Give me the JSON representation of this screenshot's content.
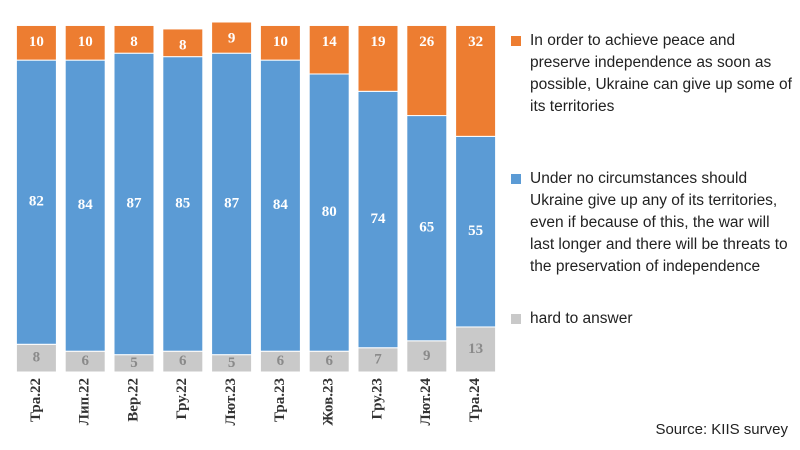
{
  "chart_data": {
    "type": "stacked_bar",
    "categories": [
      "Тра.22",
      "Лип.22",
      "Вер.22",
      "Гру.22",
      "Лют.23",
      "Тра.23",
      "Жов.23",
      "Гру.23",
      "Лют.24",
      "Тра.24"
    ],
    "series": [
      {
        "name": "hard to answer",
        "color": "#c9c9c9",
        "label_color": "#8a8a8a",
        "values": [
          8,
          6,
          5,
          6,
          5,
          6,
          6,
          7,
          9,
          13
        ]
      },
      {
        "name": "Under no circumstances should Ukraine give up any of its territories, even if because of this, the war will last longer and there will be threats to the preservation of independence",
        "color": "#5b9bd5",
        "label_color": "#ffffff",
        "values": [
          82,
          84,
          87,
          85,
          87,
          84,
          80,
          74,
          65,
          55
        ]
      },
      {
        "name": "In order to achieve peace and preserve independence as soon as possible, Ukraine can give up some of its territories",
        "color": "#ed7d31",
        "label_color": "#ffffff",
        "values": [
          10,
          10,
          8,
          8,
          9,
          10,
          14,
          19,
          26,
          32
        ]
      }
    ],
    "source": "Source: KIIS survey",
    "legend": "right"
  }
}
